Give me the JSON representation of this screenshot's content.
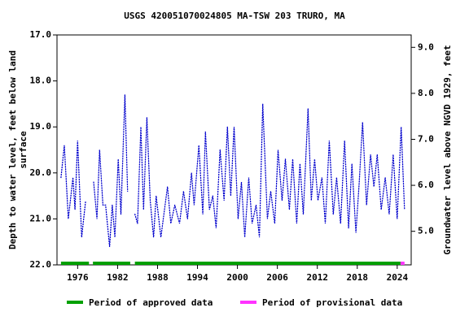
{
  "chart_data": {
    "type": "line",
    "title": "USGS 420051070024805 MA-TSW  203 TRURO, MA",
    "ylabel": [
      "Depth to water level, feet below land",
      "surface"
    ],
    "y2label": "Groundwater level above NGVD 1929, feet",
    "color": "#0000cc",
    "x": [
      1973.5,
      1974.0,
      1974.6,
      1975.3,
      1975.6,
      1976.0,
      1976.6,
      1977.2,
      1977.9,
      1978.4,
      1978.9,
      1979.3,
      1979.8,
      1980.2,
      1980.8,
      1981.2,
      1981.6,
      1982.1,
      1982.5,
      1983.1,
      1983.5,
      1984.2,
      1984.6,
      1985.0,
      1985.5,
      1985.9,
      1986.4,
      1986.9,
      1987.4,
      1987.8,
      1988.5,
      1989.5,
      1990.0,
      1990.6,
      1991.3,
      1991.9,
      1992.5,
      1993.1,
      1993.5,
      1994.2,
      1994.8,
      1995.2,
      1995.8,
      1996.3,
      1996.8,
      1997.4,
      1998.0,
      1998.5,
      1999.0,
      1999.5,
      2000.1,
      2000.6,
      2001.1,
      2001.7,
      2002.2,
      2002.8,
      2003.3,
      2003.8,
      2004.5,
      2005.0,
      2005.6,
      2006.1,
      2006.7,
      2007.2,
      2007.8,
      2008.3,
      2008.9,
      2009.4,
      2009.9,
      2010.6,
      2011.1,
      2011.6,
      2012.1,
      2012.7,
      2013.2,
      2013.8,
      2014.4,
      2014.9,
      2015.5,
      2016.1,
      2016.7,
      2017.2,
      2017.8,
      2018.3,
      2018.8,
      2019.4,
      2020.0,
      2020.5,
      2021.0,
      2021.6,
      2022.2,
      2022.8,
      2023.4,
      2024.0,
      2024.6,
      2025.1
    ],
    "values": [
      20.1,
      19.4,
      21.0,
      20.1,
      20.8,
      19.3,
      21.4,
      20.6,
      null,
      20.2,
      21.0,
      19.5,
      20.7,
      20.7,
      21.6,
      20.7,
      21.4,
      19.7,
      20.9,
      18.3,
      20.4,
      null,
      20.9,
      21.1,
      19.0,
      20.8,
      18.8,
      20.6,
      21.4,
      20.5,
      21.4,
      20.3,
      21.1,
      20.7,
      21.1,
      20.4,
      21.0,
      20.0,
      20.7,
      19.4,
      20.9,
      19.1,
      20.8,
      20.5,
      21.2,
      19.5,
      20.6,
      19.0,
      20.5,
      19.0,
      21.0,
      20.2,
      21.4,
      20.1,
      21.1,
      20.7,
      21.4,
      18.5,
      21.0,
      20.4,
      21.1,
      19.5,
      20.6,
      19.7,
      20.8,
      19.7,
      21.1,
      19.8,
      20.9,
      18.6,
      20.6,
      19.7,
      20.6,
      20.1,
      21.1,
      19.3,
      20.9,
      20.1,
      21.1,
      19.3,
      21.2,
      19.8,
      21.3,
      20.2,
      18.9,
      20.7,
      19.6,
      20.3,
      19.6,
      20.8,
      20.1,
      20.9,
      19.6,
      21.0,
      19.0,
      20.8
    ],
    "xlim": [
      1972.9,
      2026.1
    ],
    "xticks": [
      1976,
      1982,
      1988,
      1994,
      2000,
      2006,
      2012,
      2018,
      2024
    ],
    "ylim": [
      22,
      17
    ],
    "yticks": [
      {
        "value": 17,
        "label": "17.0"
      },
      {
        "value": 18,
        "label": "18.0"
      },
      {
        "value": 19,
        "label": "19.0"
      },
      {
        "value": 20,
        "label": "20.0"
      },
      {
        "value": 21,
        "label": "21.0"
      },
      {
        "value": 22,
        "label": "22.0"
      }
    ],
    "y2lim": [
      4.27,
      9.27
    ],
    "y2ticks": [
      {
        "value": 5,
        "label": "5.0"
      },
      {
        "value": 6,
        "label": "6.0"
      },
      {
        "value": 7,
        "label": "7.0"
      },
      {
        "value": 8,
        "label": "8.0"
      },
      {
        "value": 9,
        "label": "9.0"
      }
    ],
    "periods": [
      {
        "name": "Period of approved data",
        "color": "#00a000",
        "ranges": [
          [
            1973.5,
            1977.7
          ],
          [
            1978.3,
            1983.9
          ],
          [
            1984.6,
            2024.5
          ]
        ]
      },
      {
        "name": "Period of provisional data",
        "color": "#ff33ff",
        "ranges": [
          [
            2024.5,
            2025.1
          ]
        ]
      }
    ]
  }
}
